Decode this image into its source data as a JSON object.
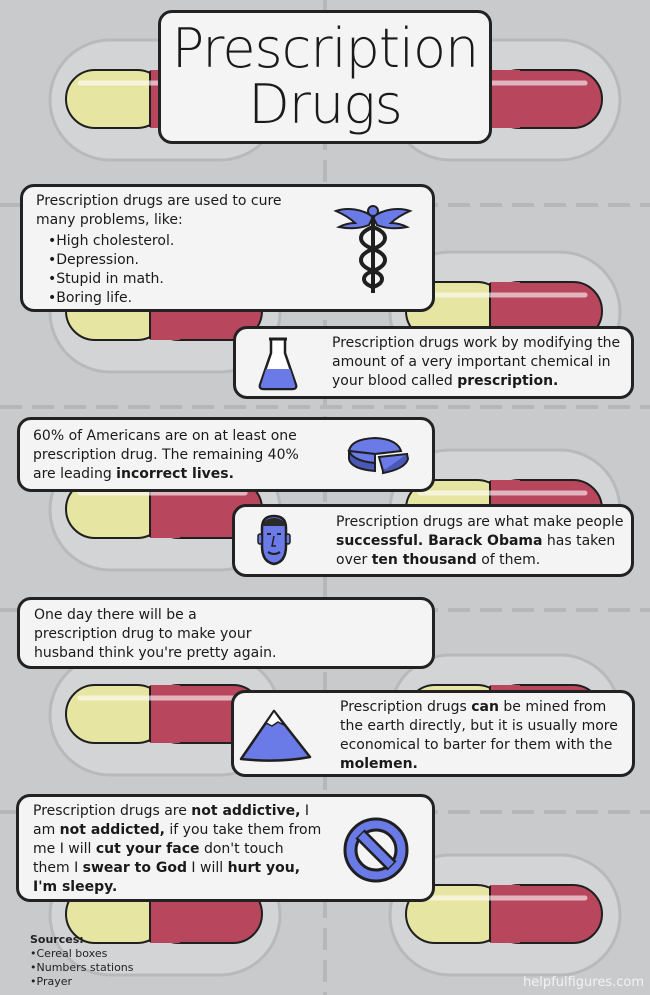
{
  "title": {
    "line1": "Prescription",
    "line2": "Drugs"
  },
  "colors": {
    "background": "#c9cacc",
    "card": "#f4f4f4",
    "icon_blue": "#6a7ae6",
    "pill_yellow": "#e6e5a2",
    "pill_red": "#b8475e"
  },
  "card1": {
    "intro": "Prescription drugs are used to cure many problems, like:",
    "items": [
      "High cholesterol.",
      "Depression.",
      "Stupid in math.",
      "Boring life."
    ],
    "icon": "caduceus-icon"
  },
  "card2": {
    "text": "Prescription drugs work by modifying the amount of a very important chemical in your blood called",
    "bold": "prescription.",
    "icon": "flask-icon"
  },
  "card3": {
    "text": "60% of Americans are on at least one prescription drug. The remaining 40% are leading",
    "bold": "incorrect lives.",
    "icon": "pie-chart-icon"
  },
  "card4": {
    "p1": "Prescription drugs are what make people",
    "b1": "successful. Barack Obama",
    "p2": "has taken over",
    "b2": "ten thousand",
    "p3": "of them.",
    "icon": "face-icon"
  },
  "card5": {
    "text": "One day there will be a prescription drug to make your husband think you're pretty again."
  },
  "card6": {
    "p1": "Prescription drugs",
    "b1": "can",
    "p2": "be mined from the earth directly, but it is usually more economical to barter for them with the",
    "b2": "molemen.",
    "icon": "mountain-icon"
  },
  "card7": {
    "p1": "Prescription drugs are",
    "b1": "not addictive,",
    "p2": "I am",
    "b2": "not addicted,",
    "p3": "if you take them from me I will",
    "b3": "cut your face",
    "p4": "don't touch them I",
    "b4": "swear to God",
    "p5": "I will",
    "b5": "hurt you, I'm sleepy.",
    "icon": "prohibited-icon"
  },
  "sources": {
    "heading": "Sources:",
    "items": [
      "Cereal boxes",
      "Numbers stations",
      "Prayer"
    ]
  },
  "credit": "helpfulfigures.com"
}
